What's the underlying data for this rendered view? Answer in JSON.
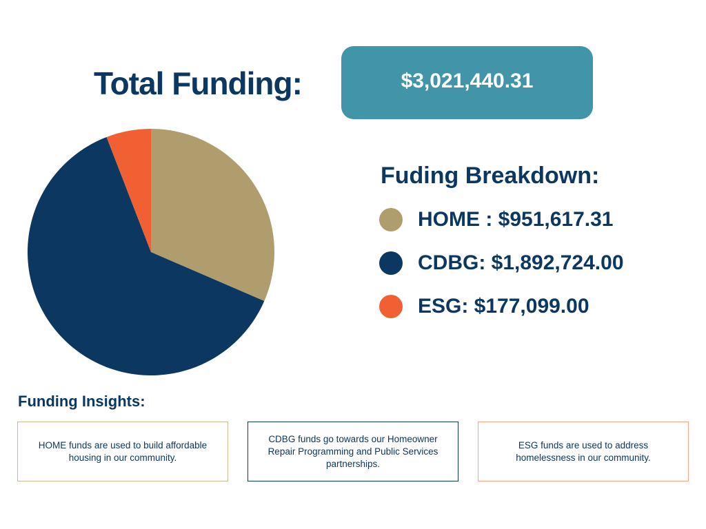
{
  "total": {
    "title": "Total Funding:",
    "amount": "$3,021,440.31",
    "box_color": "#4295a8"
  },
  "breakdown": {
    "title": "Fuding Breakdown:"
  },
  "legend": [
    {
      "label": "HOME : $951,617.31",
      "color": "#b09d6e"
    },
    {
      "label": "CDBG: $1,892,724.00",
      "color": "#0b3760"
    },
    {
      "label": "ESG: $177,099.00",
      "color": "#f06033"
    }
  ],
  "insights": {
    "title": "Funding Insights:",
    "cards": [
      {
        "text": "HOME funds are used to build affordable housing in our community.",
        "border_color": "#c9b992"
      },
      {
        "text": "CDBG funds go towards our Homeowner Repair Programming and Public Services partnerships.",
        "border_color": "#0b3760"
      },
      {
        "text": "ESG funds are used to address homelessness in our community.",
        "border_color": "#f4a385"
      }
    ]
  },
  "chart_data": {
    "type": "pie",
    "title": "",
    "categories": [
      "HOME",
      "CDBG",
      "ESG"
    ],
    "values": [
      951617.31,
      1892724.0,
      177099.0
    ],
    "colors": [
      "#b09d6e",
      "#0b3760",
      "#f06033"
    ],
    "start_angle_deg": 0,
    "direction": "clockwise",
    "legend": "right"
  }
}
